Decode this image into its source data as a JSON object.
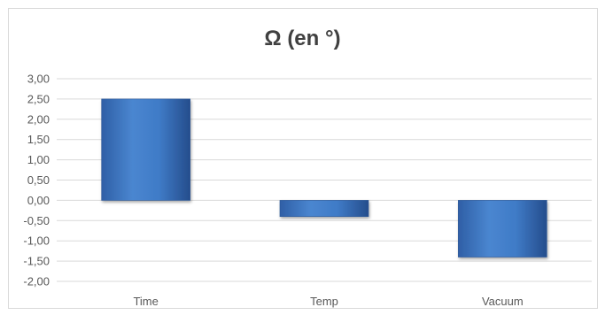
{
  "chart_data": {
    "type": "bar",
    "title": "Ω (en °)",
    "categories": [
      "Time",
      "Temp",
      "Vacuum"
    ],
    "values": [
      2.5,
      -0.4,
      -1.4
    ],
    "ylim": [
      -2.0,
      3.0
    ],
    "yticks": [
      "3,00",
      "2,50",
      "2,00",
      "1,50",
      "1,00",
      "0,50",
      "0,00",
      "-0,50",
      "-1,00",
      "-1,50",
      "-2,00"
    ],
    "grid": true,
    "legend": "none",
    "bar_color": "#3f77c4"
  }
}
